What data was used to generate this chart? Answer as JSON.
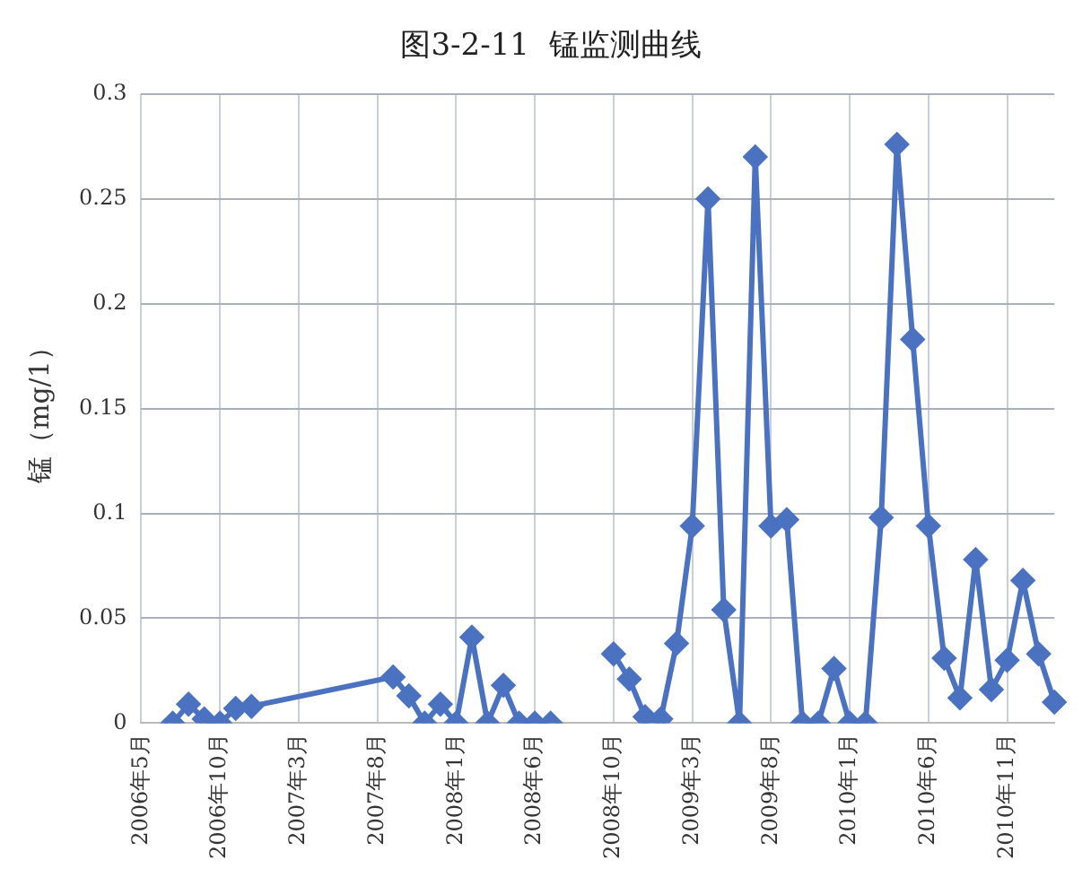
{
  "chart_data": {
    "type": "line",
    "title": "图3-2-11  锰监测曲线",
    "ylabel": "锰（mg/1）",
    "categories": [
      "2006年5月",
      null,
      null,
      null,
      null,
      "2006年10月",
      null,
      null,
      null,
      null,
      "2007年3月",
      null,
      null,
      null,
      null,
      "2007年8月",
      null,
      null,
      null,
      null,
      "2008年1月",
      null,
      null,
      null,
      null,
      "2008年6月",
      null,
      null,
      null,
      null,
      "2008年10月",
      null,
      null,
      null,
      null,
      "2009年3月",
      null,
      null,
      null,
      null,
      "2009年8月",
      null,
      null,
      null,
      null,
      "2010年1月",
      null,
      null,
      null,
      null,
      "2010年6月",
      null,
      null,
      null,
      null,
      "2010年11月",
      null,
      null,
      null
    ],
    "series": [
      {
        "color": "#4a72c0",
        "values": [
          null,
          null,
          0,
          0.009,
          0.002,
          0,
          0.007,
          0.008,
          null,
          null,
          null,
          null,
          null,
          null,
          null,
          null,
          0.022,
          0.013,
          0,
          0.009,
          0,
          0.041,
          0,
          0.018,
          0,
          0,
          0,
          null,
          null,
          null,
          null,
          null,
          null,
          null,
          null,
          null,
          null,
          null,
          null,
          null,
          null,
          null,
          null,
          null,
          null,
          null,
          null,
          null,
          null,
          null,
          null,
          null,
          null,
          null,
          null,
          null,
          null,
          null,
          null
        ]
      },
      {
        "color": "#4a72c0",
        "values": [
          null,
          null,
          null,
          null,
          null,
          null,
          null,
          null,
          null,
          null,
          null,
          null,
          null,
          null,
          null,
          null,
          null,
          null,
          null,
          null,
          null,
          null,
          null,
          null,
          null,
          null,
          null,
          null,
          null,
          null,
          0.033,
          0.021,
          0.003,
          0.002,
          0.038,
          0.094,
          0.25,
          0.054,
          0,
          0.27,
          0.094,
          0.097,
          0,
          0,
          0.026,
          0,
          0,
          0.098,
          0.276,
          0.183,
          0.094,
          0.031,
          0.012,
          0.078,
          0.016,
          0.03,
          0.068,
          0.033,
          0.01
        ]
      }
    ],
    "ylim": [
      0,
      0.3
    ],
    "yticks": [
      0,
      0.05,
      0.1,
      0.15,
      0.2,
      0.25,
      0.3
    ],
    "grid": true,
    "legend": false,
    "marker": "diamond",
    "line_style": "solid"
  }
}
